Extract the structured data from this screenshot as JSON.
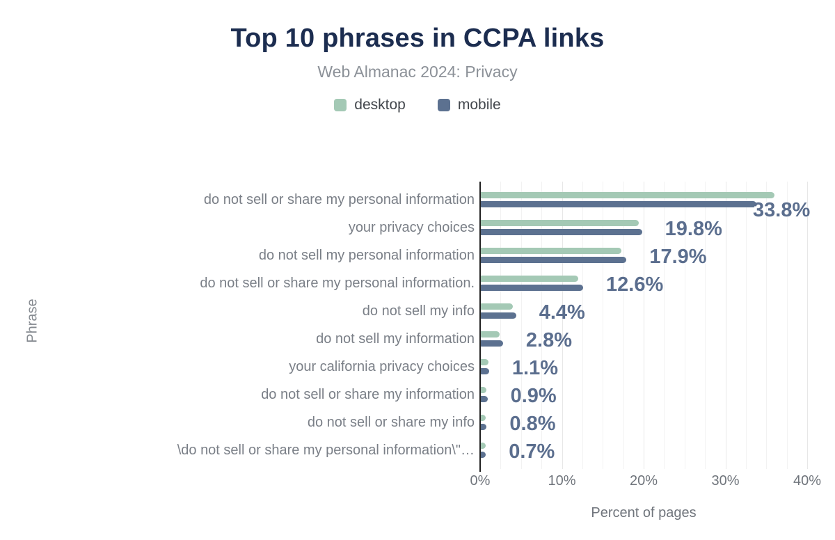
{
  "header": {
    "title": "Top 10 phrases in CCPA links",
    "subtitle": "Web Almanac 2024: Privacy"
  },
  "legend": {
    "items": [
      {
        "label": "desktop",
        "color": "#a4c9b5"
      },
      {
        "label": "mobile",
        "color": "#5c7190"
      }
    ]
  },
  "colors": {
    "title": "#1c2d50",
    "subtitle": "#8c9198",
    "category_labels": "#7a7f87",
    "value_labels": "#5b6e8e",
    "axis_line": "#202020",
    "desktop_series": "#a4c9b5",
    "mobile_series": "#5c7190"
  },
  "chart_data": {
    "type": "bar",
    "orientation": "horizontal",
    "title": "Top 10 phrases in CCPA links",
    "subtitle": "Web Almanac 2024: Privacy",
    "xlabel": "Percent of pages",
    "ylabel": "Phrase",
    "xlim": [
      0,
      40
    ],
    "grid": {
      "minor_step_percent": 2.5,
      "major_step_percent": 10,
      "vertical_gridlines": true
    },
    "legend_position": "top",
    "x_ticks": [
      {
        "value": 0,
        "label": "0%"
      },
      {
        "value": 10,
        "label": "10%"
      },
      {
        "value": 20,
        "label": "20%"
      },
      {
        "value": 30,
        "label": "30%"
      },
      {
        "value": 40,
        "label": "40%"
      }
    ],
    "categories": [
      "do not sell or share my personal information",
      "your privacy choices",
      "do not sell my personal information",
      "do not sell or share my personal information.",
      "do not sell my info",
      "do not sell my information",
      "your california privacy choices",
      "do not sell or share my information",
      "do not sell or share my info",
      "\\do not sell or share my personal information\\\"…"
    ],
    "series": [
      {
        "name": "desktop",
        "color": "#a4c9b5",
        "values": [
          36.0,
          19.4,
          17.3,
          12.0,
          4.0,
          2.4,
          1.0,
          0.8,
          0.7,
          0.7
        ]
      },
      {
        "name": "mobile",
        "color": "#5c7190",
        "values": [
          33.8,
          19.8,
          17.9,
          12.6,
          4.4,
          2.8,
          1.1,
          0.9,
          0.8,
          0.7
        ]
      }
    ],
    "data_labels": {
      "series": "mobile",
      "labels": [
        "33.8%",
        "19.8%",
        "17.9%",
        "12.6%",
        "4.4%",
        "2.8%",
        "1.1%",
        "0.9%",
        "0.8%",
        "0.7%"
      ]
    }
  }
}
